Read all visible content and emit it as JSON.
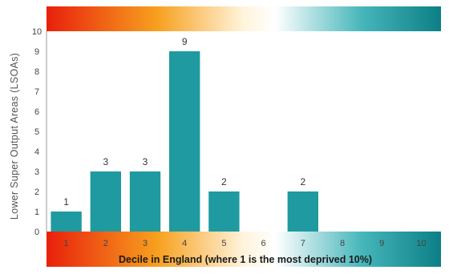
{
  "chart_data": {
    "type": "bar",
    "categories": [
      "1",
      "2",
      "3",
      "4",
      "5",
      "6",
      "7",
      "8",
      "9",
      "10"
    ],
    "values": [
      1,
      3,
      3,
      9,
      2,
      0,
      2,
      0,
      0,
      0
    ],
    "data_labels": [
      "1",
      "3",
      "3",
      "9",
      "2",
      "",
      "2",
      "",
      "",
      ""
    ],
    "title": "",
    "xlabel": "Decile in England (where 1 is the most deprived 10%)",
    "ylabel": "Lower Super Output Areas (LSOAs)",
    "ylim": [
      0,
      10
    ],
    "y_ticks": [
      "0",
      "1",
      "2",
      "3",
      "4",
      "5",
      "6",
      "7",
      "8",
      "9",
      "10"
    ],
    "grid": false,
    "legend": "none",
    "bar_color": "#1f9aa0",
    "gradient_colors": [
      "#e8200c",
      "#f7a01e",
      "#ffffff",
      "#2aa9ae",
      "#0c7f86"
    ]
  }
}
